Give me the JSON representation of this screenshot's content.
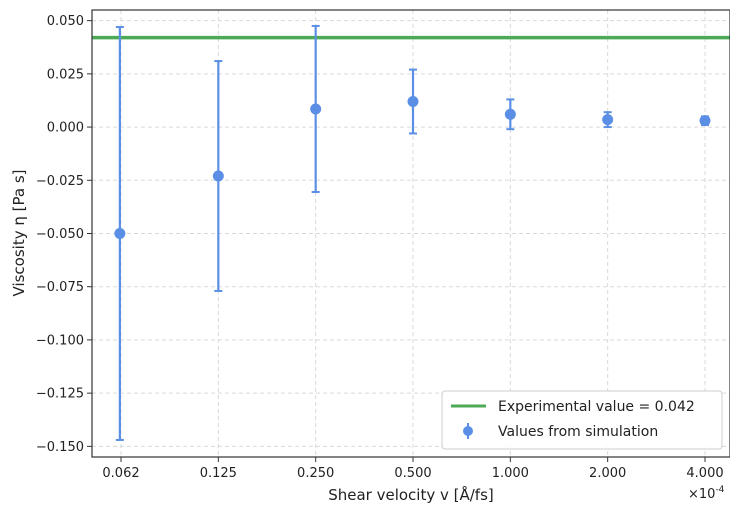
{
  "chart_data": {
    "type": "scatter",
    "title": "",
    "xlabel": "Shear velocity v [Å/fs]",
    "ylabel": "Viscosity η [Pa s]",
    "x_multiplier": "×10",
    "x_multiplier_exponent": "-4",
    "categories": [
      "0.062",
      "0.125",
      "0.250",
      "0.500",
      "1.000",
      "2.000",
      "4.000"
    ],
    "x_scale": "log2",
    "ylim": [
      -0.155,
      0.055
    ],
    "yticks": [
      0.05,
      0.025,
      0.0,
      -0.025,
      -0.05,
      -0.075,
      -0.1,
      -0.125,
      -0.15
    ],
    "ytick_labels": [
      "0.050",
      "0.025",
      "0.000",
      "−0.025",
      "−0.050",
      "−0.075",
      "−0.100",
      "−0.125",
      "−0.150"
    ],
    "grid": true,
    "legend_position": "lower-right",
    "series": [
      {
        "name": "Values from simulation",
        "kind": "errorbar",
        "color": "#5b8fe6",
        "x": [
          0.062,
          0.125,
          0.25,
          0.5,
          1.0,
          2.0,
          4.0
        ],
        "y": [
          -0.05,
          -0.023,
          0.0085,
          0.012,
          0.006,
          0.0035,
          0.003
        ],
        "yerr": [
          0.097,
          0.054,
          0.039,
          0.015,
          0.007,
          0.0035,
          0.002
        ]
      },
      {
        "name": "Experimental value = 0.042",
        "kind": "hline",
        "color": "#4caa57",
        "y": 0.042
      }
    ]
  }
}
